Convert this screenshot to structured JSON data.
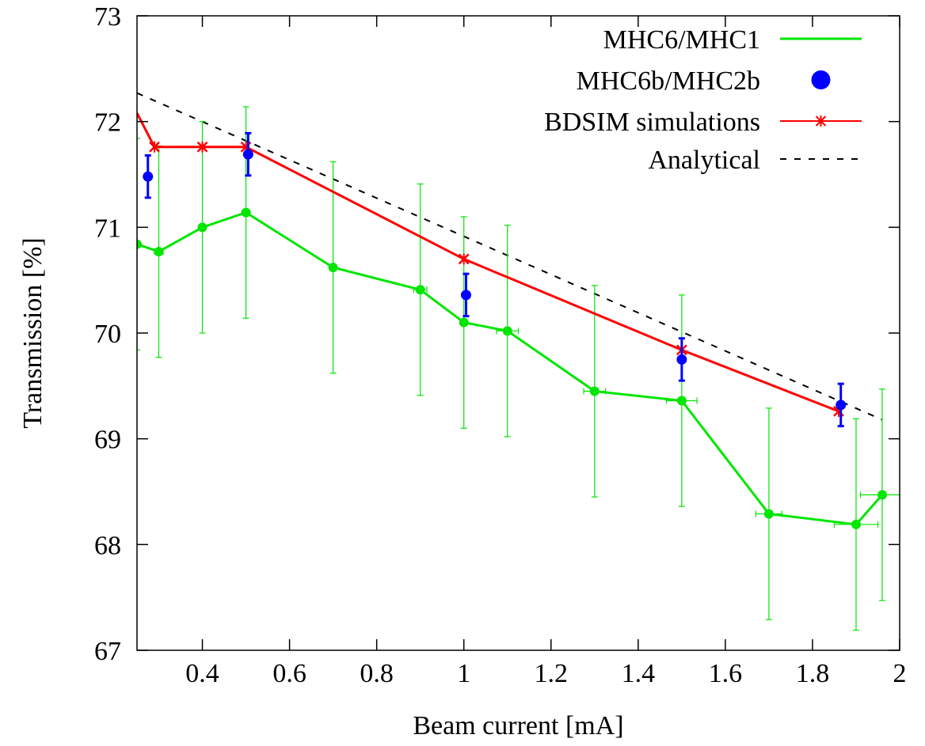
{
  "chart_data": {
    "type": "line",
    "xlabel": "Beam current [mA]",
    "ylabel": "Transmission [%]",
    "xlim": [
      0.25,
      2
    ],
    "ylim": [
      67,
      73
    ],
    "xticks": [
      0.4,
      0.6,
      0.8,
      1,
      1.2,
      1.4,
      1.6,
      1.8,
      2
    ],
    "xtick_labels": [
      "0.4",
      "0.6",
      "0.8",
      "1",
      "1.2",
      "1.4",
      "1.6",
      "1.8",
      "2"
    ],
    "yticks": [
      67,
      68,
      69,
      70,
      71,
      72,
      73
    ],
    "ytick_labels": [
      "67",
      "68",
      "69",
      "70",
      "71",
      "72",
      "73"
    ],
    "grid": false,
    "legend_position": "top-right",
    "series": [
      {
        "name": "MHC6/MHC1",
        "style": "line-points-errorbars",
        "color": "#00e600",
        "x": [
          0.25,
          0.3,
          0.4,
          0.5,
          0.7,
          0.9,
          1.0,
          1.1,
          1.3,
          1.5,
          1.7,
          1.9,
          1.96
        ],
        "y": [
          70.84,
          70.77,
          71.0,
          71.14,
          70.62,
          70.41,
          70.1,
          70.02,
          69.45,
          69.36,
          68.29,
          68.19,
          68.47
        ],
        "y_err": [
          1.0,
          1.0,
          1.0,
          1.0,
          1.0,
          1.0,
          1.0,
          1.0,
          1.0,
          1.0,
          1.0,
          1.0,
          1.0
        ],
        "x_err": [
          0.0,
          0.01,
          0.0,
          0.0,
          0.0,
          0.015,
          0.0,
          0.025,
          0.025,
          0.035,
          0.03,
          0.05,
          0.05
        ]
      },
      {
        "name": "MHC6b/MHC2b",
        "style": "points-errorbars",
        "color": "#0000ff",
        "x": [
          0.275,
          0.505,
          1.005,
          1.5,
          1.865
        ],
        "y": [
          71.48,
          71.69,
          70.36,
          69.75,
          69.32
        ],
        "y_err": [
          0.2,
          0.2,
          0.2,
          0.2,
          0.2
        ]
      },
      {
        "name": "BDSIM simulations",
        "style": "line-crosses",
        "color": "#ff0000",
        "x": [
          0.25,
          0.29,
          0.4,
          0.5,
          1.0,
          1.5,
          1.86
        ],
        "y": [
          72.08,
          71.76,
          71.76,
          71.76,
          70.7,
          69.84,
          69.26
        ],
        "marker_mask": [
          false,
          true,
          true,
          true,
          true,
          true,
          true
        ]
      },
      {
        "name": "Analytical",
        "style": "dashed",
        "color": "#000000",
        "x": [
          0.25,
          1.96
        ],
        "y": [
          72.27,
          69.18
        ]
      }
    ]
  }
}
